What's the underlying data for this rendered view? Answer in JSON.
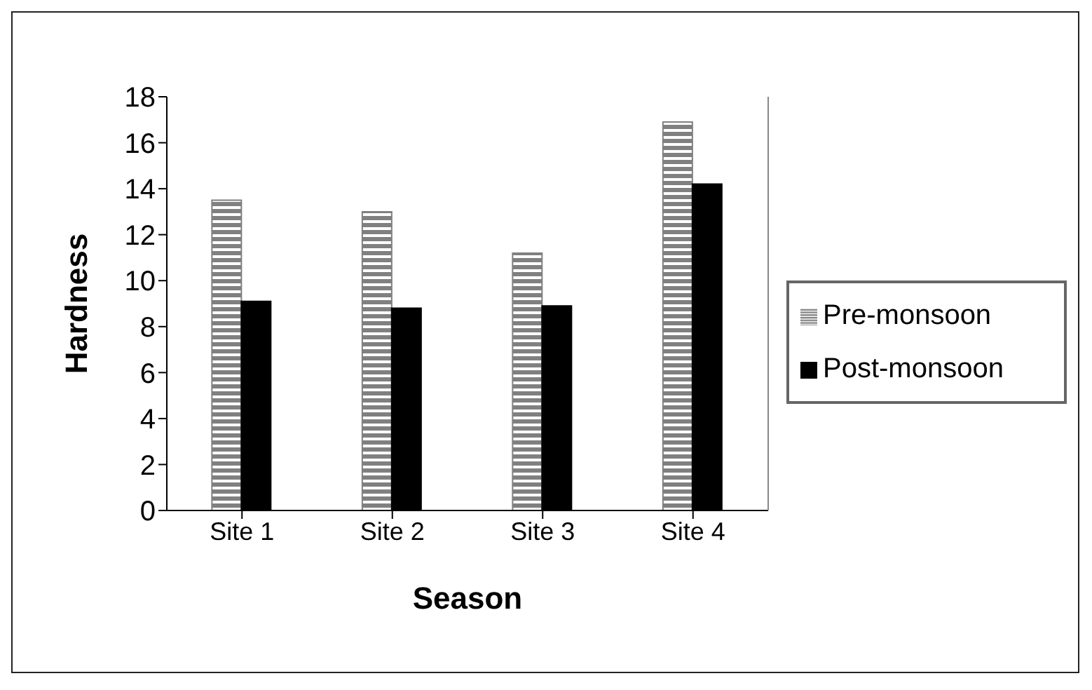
{
  "chart_data": {
    "type": "bar",
    "xlabel": "Season",
    "ylabel": "Hardness",
    "categories": [
      "Site 1",
      "Site 2",
      "Site 3",
      "Site 4"
    ],
    "series": [
      {
        "name": "Pre-monsoon",
        "color": "#808080",
        "values": [
          13.5,
          13.0,
          11.2,
          16.9
        ]
      },
      {
        "name": "Post-monsoon",
        "color": "#000000",
        "values": [
          9.1,
          8.8,
          8.9,
          14.2
        ]
      }
    ],
    "ylim": [
      0,
      18
    ],
    "yticks": [
      0,
      2,
      4,
      6,
      8,
      10,
      12,
      14,
      16,
      18
    ],
    "legend": "right"
  }
}
